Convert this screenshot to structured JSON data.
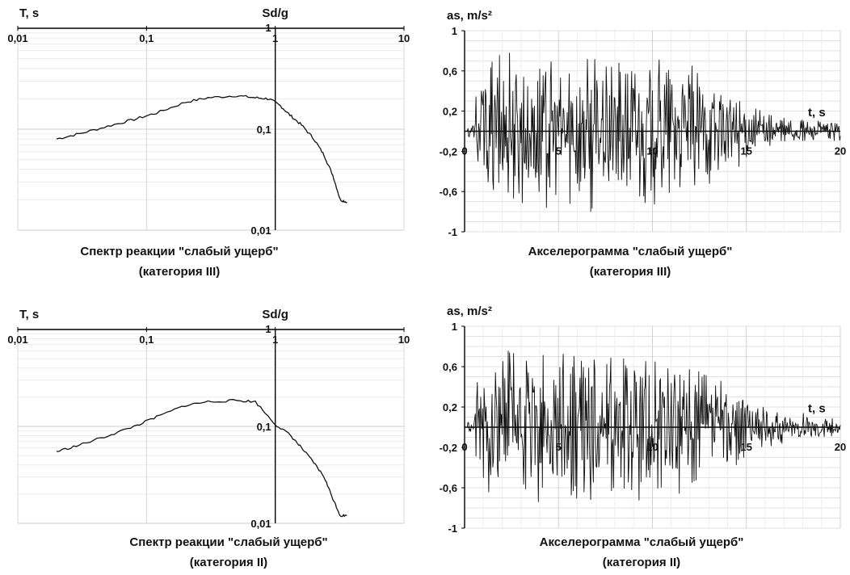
{
  "chart_data": [
    {
      "type": "line",
      "id": "spectrum-cat3",
      "scale": "log-log",
      "xlabel": "T, s",
      "ylabel": "Sd/g",
      "x_ticks": [
        "0,01",
        "0,1",
        "1",
        "10"
      ],
      "y_ticks": [
        "1",
        "0,1",
        "0,01"
      ],
      "xlim": [
        0.01,
        10
      ],
      "ylim": [
        0.01,
        1
      ],
      "caption_line1": "Спектр реакции \"слабый ущерб\"",
      "caption_line2": "(категория III)",
      "series": [
        {
          "name": "Sd/g",
          "x": [
            0.02,
            0.03,
            0.05,
            0.08,
            0.12,
            0.2,
            0.3,
            0.5,
            0.7,
            0.9,
            1.1,
            1.3,
            1.6,
            2.0,
            2.4,
            2.8,
            3.2,
            3.6
          ],
          "y": [
            0.08,
            0.09,
            0.107,
            0.125,
            0.145,
            0.185,
            0.205,
            0.215,
            0.205,
            0.2,
            0.17,
            0.138,
            0.11,
            0.08,
            0.055,
            0.035,
            0.02,
            0.019
          ]
        }
      ]
    },
    {
      "type": "line",
      "id": "accel-cat3",
      "xlabel": "t, s",
      "ylabel": "as, m/s²",
      "x_ticks": [
        "0",
        "5",
        "10",
        "15",
        "20"
      ],
      "y_ticks": [
        "1",
        "0,6",
        "0,2",
        "-0,2",
        "-0,6",
        "-1"
      ],
      "xlim": [
        0,
        20
      ],
      "ylim": [
        -1,
        1
      ],
      "peak_positive": 0.78,
      "peak_negative": -0.8,
      "caption_line1": "Акселерограмма \"слабый ущерб\"",
      "caption_line2": "(категория III)"
    },
    {
      "type": "line",
      "id": "spectrum-cat2",
      "scale": "log-log",
      "xlabel": "T, s",
      "ylabel": "Sd/g",
      "x_ticks": [
        "0,01",
        "0,1",
        "1",
        "10"
      ],
      "y_ticks": [
        "1",
        "0,1",
        "0,01"
      ],
      "xlim": [
        0.01,
        10
      ],
      "ylim": [
        0.01,
        1
      ],
      "caption_line1": "Спектр реакции \"слабый ущерб\"",
      "caption_line2": "(категория II)",
      "series": [
        {
          "name": "Sd/g",
          "x": [
            0.02,
            0.03,
            0.05,
            0.08,
            0.12,
            0.2,
            0.3,
            0.5,
            0.7,
            1.0,
            1.3,
            1.6,
            2.0,
            2.4,
            2.8,
            3.2,
            3.6
          ],
          "y": [
            0.055,
            0.064,
            0.08,
            0.1,
            0.125,
            0.165,
            0.18,
            0.185,
            0.18,
            0.105,
            0.082,
            0.06,
            0.042,
            0.03,
            0.018,
            0.012,
            0.012
          ]
        }
      ]
    },
    {
      "type": "line",
      "id": "accel-cat2",
      "xlabel": "t, s",
      "ylabel": "as, m/s²",
      "x_ticks": [
        "0",
        "5",
        "10",
        "15",
        "20"
      ],
      "y_ticks": [
        "1",
        "0,6",
        "0,2",
        "-0,2",
        "-0,6",
        "-1"
      ],
      "xlim": [
        0,
        20
      ],
      "ylim": [
        -1,
        1
      ],
      "peak_positive": 0.74,
      "peak_negative": -0.72,
      "caption_line1": "Акселерограмма \"слабый ущерб\"",
      "caption_line2": "(категория II)"
    }
  ]
}
